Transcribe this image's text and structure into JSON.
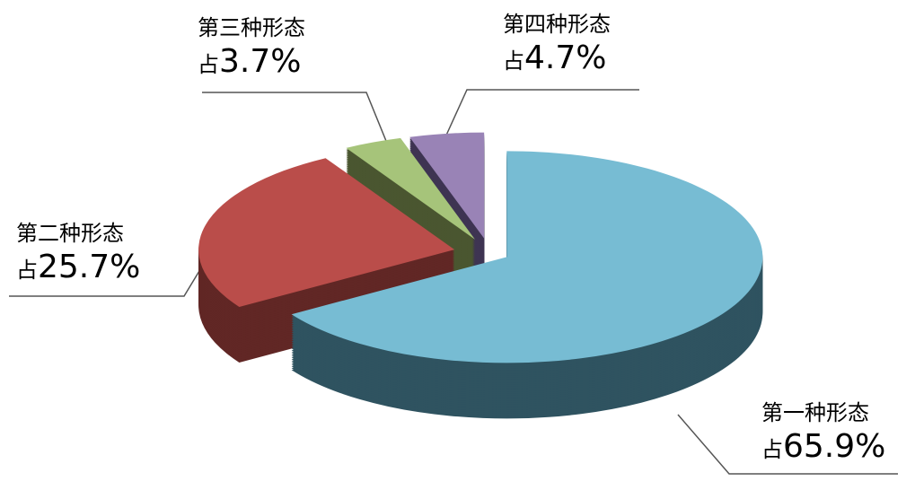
{
  "chart_data": {
    "type": "pie",
    "style": "3d-exploded",
    "title": "",
    "slices": [
      {
        "name": "第一种形态",
        "prefix": "占",
        "value": 65.9,
        "label": "65.9%",
        "color": "#77BCD3",
        "side_color": "#2F5360"
      },
      {
        "name": "第二种形态",
        "prefix": "占",
        "value": 25.7,
        "label": "25.7%",
        "color": "#BA4D4A",
        "side_color": "#612725"
      },
      {
        "name": "第三种形态",
        "prefix": "占",
        "value": 3.7,
        "label": "3.7%",
        "color": "#A6C47A",
        "side_color": "#4A5630"
      },
      {
        "name": "第四种形态",
        "prefix": "占",
        "value": 4.7,
        "label": "4.7%",
        "color": "#9983B6",
        "side_color": "#3E3452"
      }
    ],
    "legend": "none",
    "start_angle": "12 o'clock, clockwise"
  }
}
